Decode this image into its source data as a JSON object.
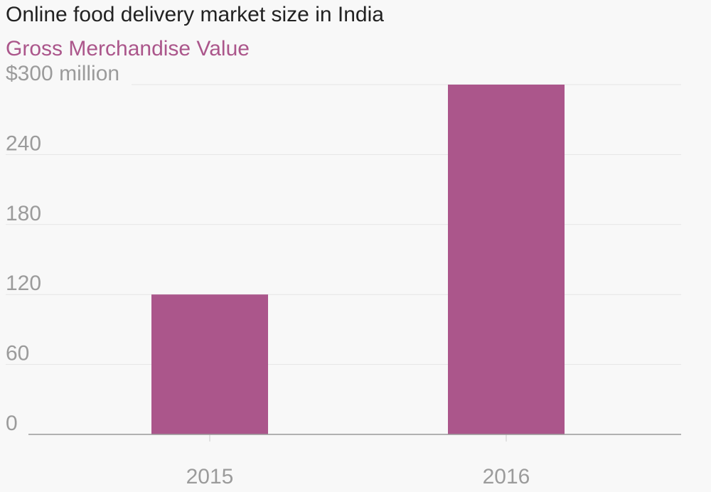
{
  "chart_data": {
    "type": "bar",
    "title": "Online food delivery market size in India",
    "subtitle": "Gross Merchandise Value",
    "categories": [
      "2015",
      "2016"
    ],
    "values": [
      120,
      300
    ],
    "y_ticks": [
      "0",
      "60",
      "120",
      "180",
      "240",
      "$300 million"
    ],
    "ylim": [
      0,
      300
    ],
    "grid": true,
    "xlabel": "",
    "ylabel": "",
    "bar_color": "#ab568b",
    "grid_color": "#e6e6e6",
    "axis_color": "#999999",
    "tick_color": "#9b9b9b"
  }
}
